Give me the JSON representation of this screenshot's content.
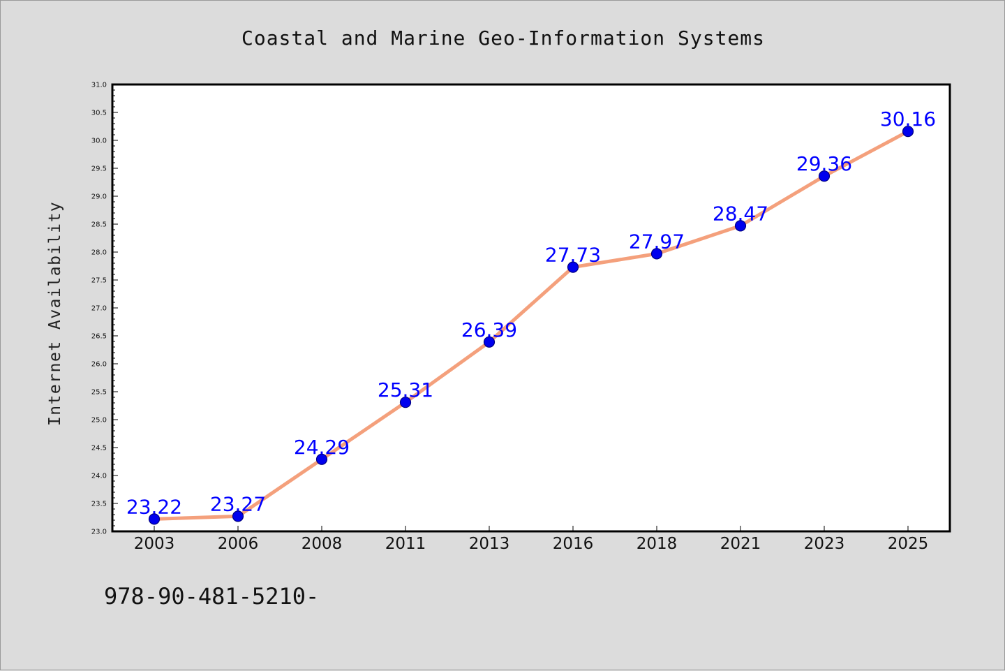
{
  "footer_text": "978-90-481-5210-",
  "chart_data": {
    "type": "line",
    "title": "Coastal and Marine Geo-Information Systems",
    "xlabel": "",
    "ylabel": "Internet Availability",
    "categories": [
      "2003",
      "2006",
      "2008",
      "2011",
      "2013",
      "2016",
      "2018",
      "2021",
      "2023",
      "2025"
    ],
    "values": [
      23.22,
      23.27,
      24.29,
      25.31,
      26.39,
      27.73,
      27.97,
      28.47,
      29.36,
      30.16
    ],
    "data_labels": [
      "23.22",
      "23.27",
      "24.29",
      "25.31",
      "26.39",
      "27.73",
      "27.97",
      "28.47",
      "29.36",
      "30.16"
    ],
    "ylim": [
      23.0,
      31.0
    ],
    "y_ticks": [
      "23.0",
      "23.5",
      "24.0",
      "24.5",
      "25.0",
      "25.5",
      "26.0",
      "26.5",
      "27.0",
      "27.5",
      "28.0",
      "28.5",
      "29.0",
      "29.5",
      "30.0",
      "30.5",
      "31.0"
    ],
    "grid": false,
    "legend": "none",
    "colors": {
      "line": "#f4a07c",
      "marker": "#0000ee",
      "marker_edge": "#000080",
      "data_label": "#0000ff",
      "background": "#dcdcdc",
      "plot_background": "#ffffff"
    }
  }
}
